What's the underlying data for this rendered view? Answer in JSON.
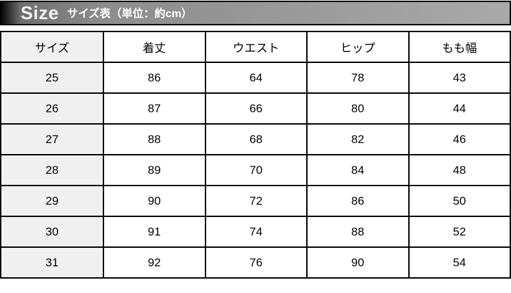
{
  "banner": {
    "title_en": "Size",
    "title_ja": "サイズ表（単位：約cm）",
    "colors": {
      "gradient_left": "#000000",
      "gradient_mid": "#8c8c8c",
      "gradient_right": "#a9a9a9",
      "border": "#000000",
      "text": "#ffffff"
    }
  },
  "table": {
    "columns": [
      "サイズ",
      "着丈",
      "ウエスト",
      "ヒップ",
      "もも幅"
    ],
    "rows": [
      [
        "25",
        "86",
        "64",
        "78",
        "43"
      ],
      [
        "26",
        "87",
        "66",
        "80",
        "44"
      ],
      [
        "27",
        "88",
        "68",
        "82",
        "46"
      ],
      [
        "28",
        "89",
        "70",
        "84",
        "48"
      ],
      [
        "29",
        "90",
        "72",
        "86",
        "50"
      ],
      [
        "30",
        "91",
        "74",
        "88",
        "52"
      ],
      [
        "31",
        "92",
        "76",
        "90",
        "54"
      ]
    ],
    "colors": {
      "first_col_bg": "#f0f0f0",
      "cell_bg": "#ffffff",
      "border": "#000000",
      "text": "#000000"
    }
  },
  "chart_data": {
    "type": "table",
    "title": "Size サイズ表（単位：約cm）",
    "unit": "約cm",
    "columns": [
      "サイズ",
      "着丈",
      "ウエスト",
      "ヒップ",
      "もも幅"
    ],
    "rows": [
      [
        25,
        86,
        64,
        78,
        43
      ],
      [
        26,
        87,
        66,
        80,
        44
      ],
      [
        27,
        88,
        68,
        82,
        46
      ],
      [
        28,
        89,
        70,
        84,
        48
      ],
      [
        29,
        90,
        72,
        86,
        50
      ],
      [
        30,
        91,
        74,
        88,
        52
      ],
      [
        31,
        92,
        76,
        90,
        54
      ]
    ]
  }
}
